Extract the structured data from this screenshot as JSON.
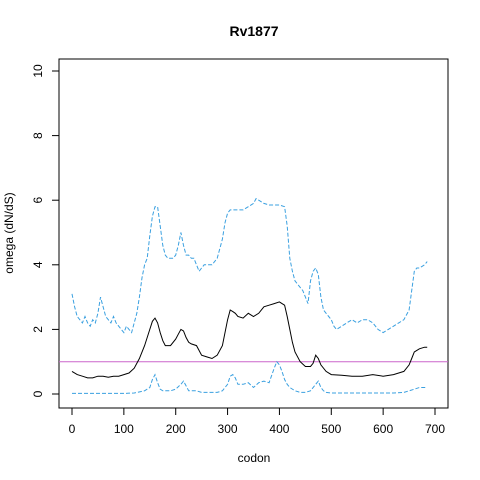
{
  "chart_data": {
    "type": "line",
    "title": "Rv1877",
    "xlabel": "codon",
    "ylabel": "omega (dN/dS)",
    "xlim": [
      0,
      700
    ],
    "ylim": [
      0,
      10
    ],
    "xticks": [
      0,
      100,
      200,
      300,
      400,
      500,
      600,
      700
    ],
    "yticks": [
      0,
      2,
      4,
      6,
      8,
      10
    ],
    "reference_line": {
      "y": 1,
      "color": "#cc66cc"
    },
    "series": [
      {
        "role": "upper",
        "style": "dashed",
        "color": "#3aa0e0",
        "x": [
          0,
          5,
          10,
          15,
          20,
          25,
          30,
          35,
          40,
          45,
          50,
          55,
          60,
          65,
          70,
          75,
          80,
          85,
          90,
          95,
          100,
          105,
          110,
          115,
          120,
          125,
          130,
          135,
          140,
          145,
          150,
          155,
          160,
          165,
          170,
          175,
          180,
          185,
          190,
          195,
          200,
          205,
          210,
          215,
          220,
          225,
          230,
          235,
          240,
          245,
          250,
          255,
          260,
          265,
          270,
          275,
          280,
          285,
          290,
          295,
          300,
          305,
          310,
          315,
          320,
          330,
          340,
          350,
          355,
          360,
          370,
          380,
          390,
          400,
          410,
          415,
          420,
          425,
          430,
          435,
          440,
          445,
          450,
          455,
          460,
          465,
          470,
          475,
          480,
          485,
          490,
          495,
          500,
          505,
          510,
          520,
          530,
          540,
          550,
          560,
          570,
          580,
          590,
          600,
          610,
          620,
          630,
          640,
          650,
          655,
          660,
          665,
          670,
          675,
          680,
          685
        ],
        "y": [
          3.1,
          2.7,
          2.4,
          2.3,
          2.2,
          2.4,
          2.2,
          2.1,
          2.3,
          2.2,
          2.5,
          3.0,
          2.7,
          2.4,
          2.3,
          2.2,
          2.4,
          2.2,
          2.1,
          2.0,
          1.9,
          2.1,
          2.0,
          1.9,
          2.2,
          2.5,
          3.0,
          3.6,
          4.0,
          4.2,
          4.9,
          5.5,
          5.8,
          5.8,
          5.2,
          4.6,
          4.3,
          4.2,
          4.2,
          4.2,
          4.3,
          4.6,
          5.0,
          4.6,
          4.3,
          4.3,
          4.2,
          4.2,
          4.0,
          3.8,
          3.9,
          4.0,
          4.0,
          4.0,
          4.0,
          4.1,
          4.2,
          4.5,
          4.8,
          5.3,
          5.6,
          5.7,
          5.7,
          5.7,
          5.7,
          5.7,
          5.8,
          5.9,
          6.05,
          6.0,
          5.9,
          5.85,
          5.85,
          5.85,
          5.8,
          5.2,
          4.2,
          3.8,
          3.5,
          3.4,
          3.3,
          3.2,
          3.0,
          2.8,
          3.5,
          3.8,
          3.9,
          3.7,
          3.0,
          2.6,
          2.5,
          2.4,
          2.3,
          2.1,
          2.0,
          2.1,
          2.2,
          2.3,
          2.2,
          2.3,
          2.3,
          2.2,
          2.0,
          1.9,
          2.0,
          2.1,
          2.2,
          2.3,
          2.6,
          3.2,
          3.8,
          3.9,
          3.9,
          3.95,
          4.0,
          4.1
        ]
      },
      {
        "role": "estimate",
        "style": "solid",
        "color": "#000000",
        "x": [
          0,
          10,
          20,
          30,
          40,
          50,
          60,
          70,
          80,
          90,
          100,
          110,
          120,
          130,
          140,
          150,
          155,
          160,
          165,
          170,
          175,
          180,
          190,
          200,
          205,
          210,
          215,
          220,
          225,
          230,
          240,
          250,
          260,
          270,
          280,
          290,
          300,
          305,
          310,
          315,
          320,
          330,
          340,
          350,
          360,
          370,
          380,
          390,
          400,
          405,
          410,
          415,
          420,
          425,
          430,
          440,
          450,
          460,
          465,
          470,
          475,
          480,
          490,
          500,
          520,
          540,
          560,
          580,
          600,
          620,
          630,
          640,
          650,
          655,
          660,
          665,
          670,
          680,
          685
        ],
        "y": [
          0.7,
          0.6,
          0.55,
          0.5,
          0.5,
          0.55,
          0.55,
          0.52,
          0.55,
          0.55,
          0.6,
          0.65,
          0.8,
          1.1,
          1.5,
          2.0,
          2.25,
          2.35,
          2.2,
          1.9,
          1.65,
          1.5,
          1.5,
          1.7,
          1.85,
          2.0,
          1.95,
          1.75,
          1.6,
          1.55,
          1.5,
          1.2,
          1.15,
          1.1,
          1.2,
          1.5,
          2.3,
          2.6,
          2.55,
          2.5,
          2.4,
          2.35,
          2.5,
          2.4,
          2.5,
          2.7,
          2.75,
          2.8,
          2.85,
          2.8,
          2.75,
          2.4,
          2.0,
          1.6,
          1.3,
          1.0,
          0.85,
          0.85,
          0.95,
          1.2,
          1.1,
          0.9,
          0.7,
          0.6,
          0.58,
          0.55,
          0.55,
          0.6,
          0.55,
          0.6,
          0.65,
          0.7,
          0.9,
          1.1,
          1.3,
          1.35,
          1.4,
          1.45,
          1.45
        ]
      },
      {
        "role": "lower",
        "style": "dashed",
        "color": "#3aa0e0",
        "x": [
          0,
          20,
          40,
          60,
          80,
          100,
          120,
          140,
          150,
          155,
          160,
          165,
          170,
          175,
          180,
          190,
          200,
          210,
          215,
          220,
          225,
          230,
          240,
          250,
          260,
          270,
          280,
          290,
          300,
          305,
          310,
          315,
          320,
          330,
          340,
          350,
          360,
          370,
          380,
          390,
          395,
          400,
          405,
          410,
          415,
          420,
          430,
          440,
          450,
          460,
          470,
          475,
          480,
          485,
          490,
          500,
          520,
          540,
          560,
          580,
          600,
          620,
          640,
          660,
          670,
          680,
          685
        ],
        "y": [
          0.02,
          0.02,
          0.02,
          0.02,
          0.02,
          0.02,
          0.03,
          0.1,
          0.2,
          0.45,
          0.6,
          0.35,
          0.15,
          0.1,
          0.1,
          0.1,
          0.15,
          0.3,
          0.4,
          0.25,
          0.1,
          0.1,
          0.1,
          0.05,
          0.05,
          0.05,
          0.05,
          0.1,
          0.3,
          0.55,
          0.6,
          0.5,
          0.3,
          0.3,
          0.35,
          0.2,
          0.35,
          0.4,
          0.35,
          0.8,
          1.0,
          0.9,
          0.7,
          0.45,
          0.3,
          0.2,
          0.1,
          0.05,
          0.05,
          0.1,
          0.3,
          0.4,
          0.2,
          0.1,
          0.05,
          0.03,
          0.03,
          0.03,
          0.03,
          0.03,
          0.03,
          0.03,
          0.05,
          0.15,
          0.2,
          0.2,
          0.2
        ]
      }
    ]
  }
}
